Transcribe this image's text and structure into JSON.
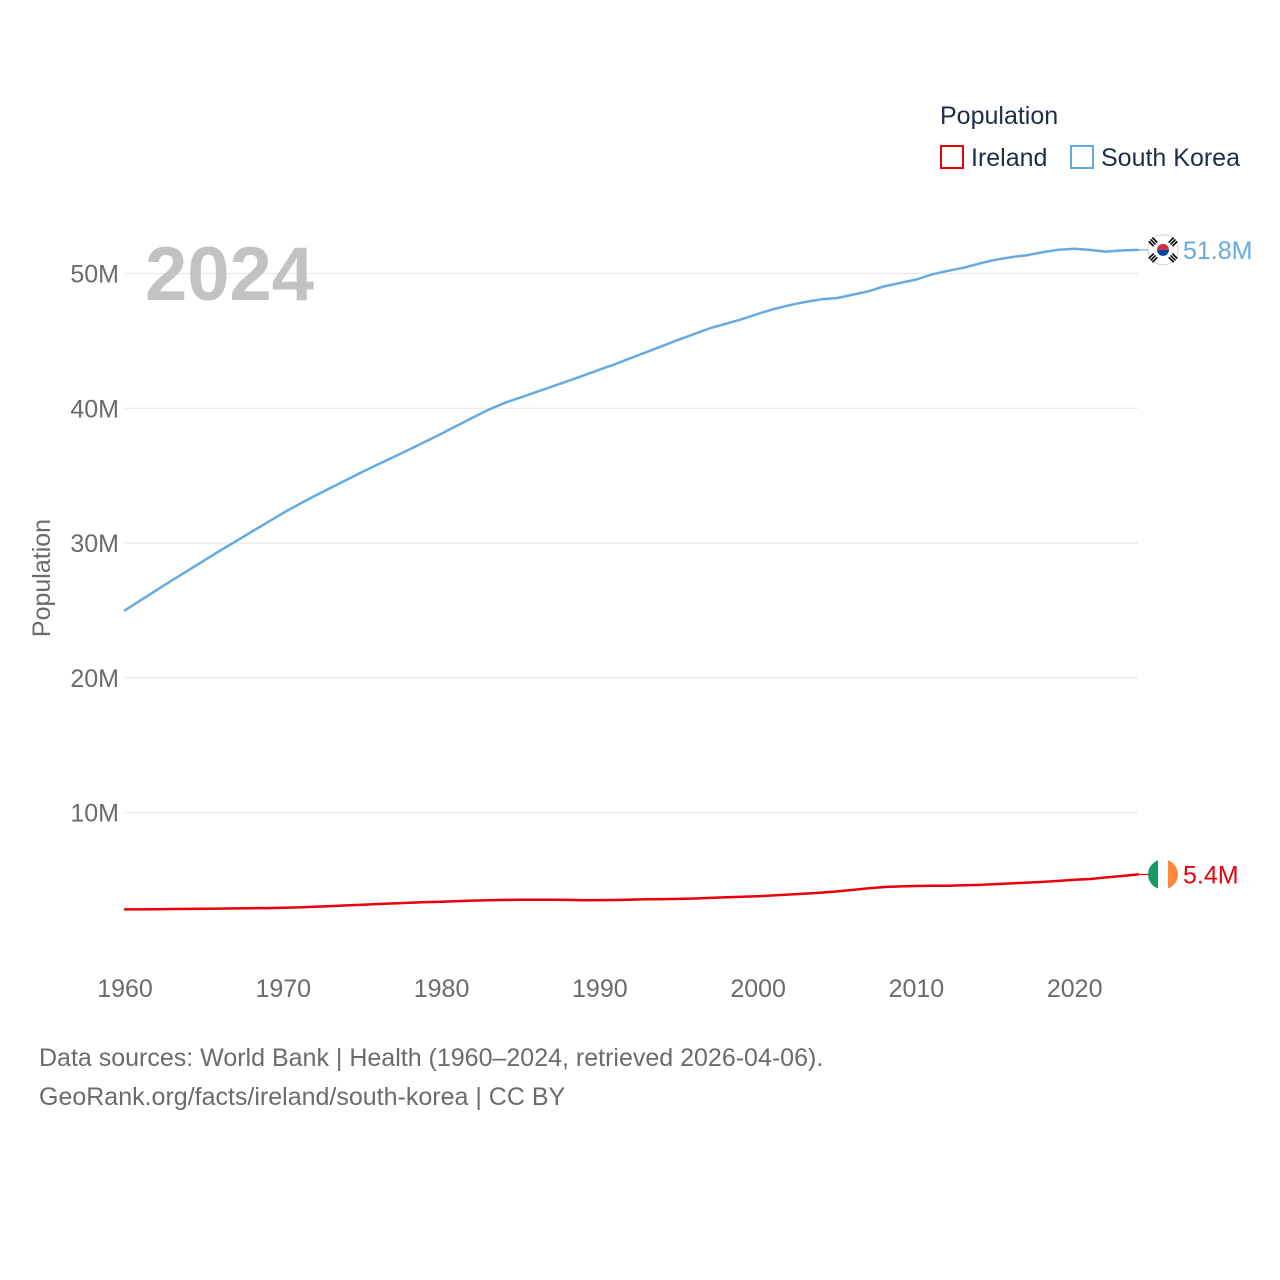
{
  "chart_data": {
    "type": "line",
    "ylabel": "Population",
    "year_label": "2024",
    "legend": {
      "title": "Population",
      "position": "top-right",
      "entries": [
        {
          "name": "Ireland",
          "color": "#e8000b"
        },
        {
          "name": "South Korea",
          "color": "#66aae2"
        }
      ]
    },
    "x_ticks": [
      1960,
      1970,
      1980,
      1990,
      2000,
      2010,
      2020
    ],
    "x_range": [
      1960,
      2024
    ],
    "y_ticks": [
      {
        "value": 10000000,
        "label": "10M"
      },
      {
        "value": 20000000,
        "label": "20M"
      },
      {
        "value": 30000000,
        "label": "30M"
      },
      {
        "value": 40000000,
        "label": "40M"
      },
      {
        "value": 50000000,
        "label": "50M"
      }
    ],
    "y_range": [
      0,
      52000000
    ],
    "x": [
      1960,
      1961,
      1962,
      1963,
      1964,
      1965,
      1966,
      1967,
      1968,
      1969,
      1970,
      1971,
      1972,
      1973,
      1974,
      1975,
      1976,
      1977,
      1978,
      1979,
      1980,
      1981,
      1982,
      1983,
      1984,
      1985,
      1986,
      1987,
      1988,
      1989,
      1990,
      1991,
      1992,
      1993,
      1994,
      1995,
      1996,
      1997,
      1998,
      1999,
      2000,
      2001,
      2002,
      2003,
      2004,
      2005,
      2006,
      2007,
      2008,
      2009,
      2010,
      2011,
      2012,
      2013,
      2014,
      2015,
      2016,
      2017,
      2018,
      2019,
      2020,
      2021,
      2022,
      2023,
      2024
    ],
    "series": [
      {
        "name": "South Korea",
        "color": "#66aae2",
        "end_label": "51.8M",
        "flag": "south-korea-flag-icon",
        "values": [
          25012000,
          25766000,
          26513000,
          27262000,
          27984000,
          28705000,
          29436000,
          30131000,
          30838000,
          31544000,
          32241000,
          32883000,
          33505000,
          34103000,
          34692000,
          35281000,
          35849000,
          36412000,
          36969000,
          37534000,
          38124000,
          38723000,
          39326000,
          39910000,
          40406000,
          40806000,
          41214000,
          41622000,
          42031000,
          42449000,
          42869000,
          43296000,
          43748000,
          44195000,
          44642000,
          45093000,
          45525000,
          45954000,
          46287000,
          46617000,
          47008000,
          47370000,
          47645000,
          47892000,
          48083000,
          48185000,
          48438000,
          48684000,
          49055000,
          49308000,
          49554000,
          49937000,
          50200000,
          50429000,
          50747000,
          51015000,
          51218000,
          51361000,
          51585000,
          51765000,
          51836000,
          51745000,
          51628000,
          51713000,
          51750000
        ]
      },
      {
        "name": "Ireland",
        "color": "#e8000b",
        "end_label": "5.4M",
        "flag": "ireland-flag-icon",
        "values": [
          2828600,
          2824400,
          2836050,
          2852650,
          2863850,
          2876550,
          2884000,
          2900100,
          2913450,
          2926350,
          2950100,
          2978250,
          3024400,
          3073200,
          3124050,
          3177300,
          3228450,
          3272000,
          3314000,
          3368200,
          3401000,
          3443400,
          3480000,
          3504000,
          3529000,
          3540000,
          3541000,
          3547000,
          3531000,
          3510000,
          3514000,
          3526000,
          3555000,
          3574000,
          3590000,
          3609000,
          3636000,
          3677000,
          3725000,
          3769000,
          3803000,
          3866000,
          3932000,
          3996000,
          4070000,
          4160000,
          4273000,
          4398000,
          4489000,
          4534000,
          4560000,
          4576000,
          4587000,
          4614000,
          4647000,
          4701000,
          4755000,
          4811000,
          4867000,
          4941000,
          5019000,
          5085000,
          5197000,
          5307000,
          5420000
        ]
      }
    ]
  },
  "footer": {
    "sources": "Data sources: World Bank | Health (1960–2024, retrieved 2026-04-06).",
    "link": "GeoRank.org/facts/ireland/south-korea | CC BY"
  }
}
